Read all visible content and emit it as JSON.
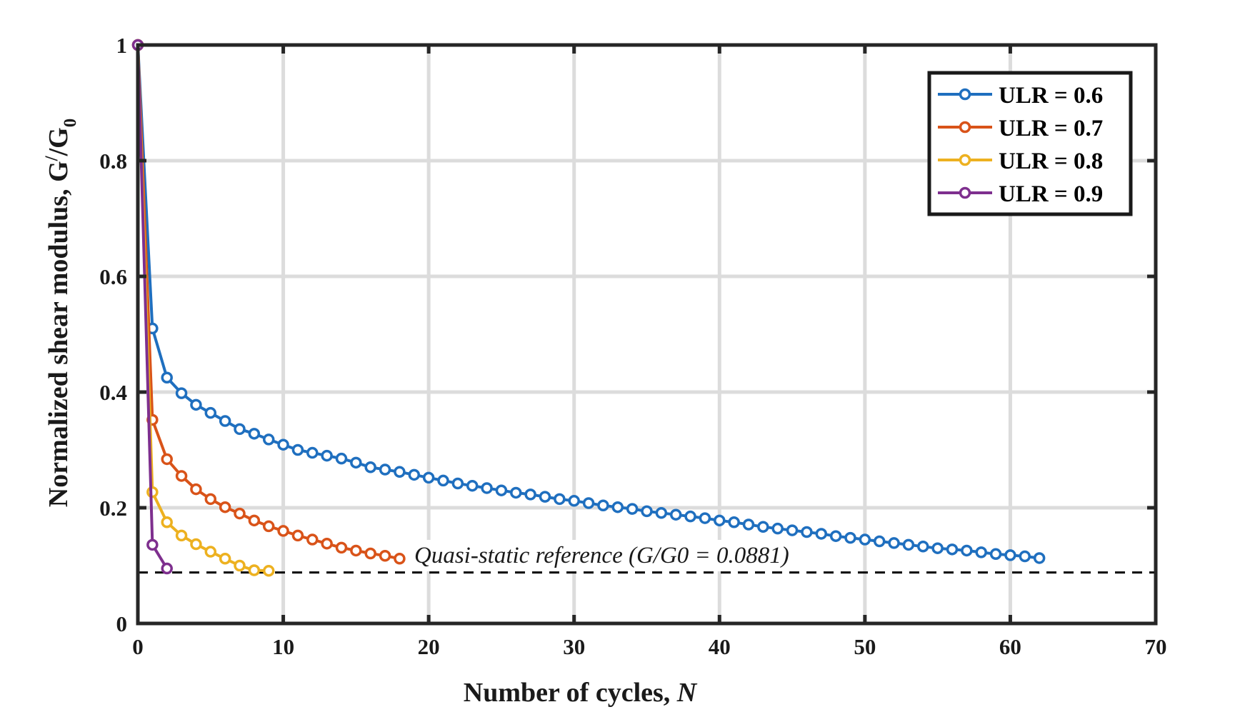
{
  "chart_data": {
    "type": "line",
    "title": "",
    "xlabel": "Number of cycles, ",
    "xlabel_italic": "N",
    "ylabel": "Normalized shear modulus, G",
    "ylabel_sup": "/",
    "ylabel_mid": "/G",
    "ylabel_sub": "0",
    "xlim": [
      0,
      70
    ],
    "ylim": [
      0,
      1
    ],
    "xticks": [
      0,
      10,
      20,
      30,
      40,
      50,
      60,
      70
    ],
    "xtick_labels": [
      "0",
      "10",
      "20",
      "30",
      "40",
      "50",
      "60",
      "70"
    ],
    "yticks": [
      0,
      0.2,
      0.4,
      0.6,
      0.8,
      1
    ],
    "ytick_labels": [
      "0",
      "0.2",
      "0.4",
      "0.6",
      "0.8",
      "1"
    ],
    "grid": true,
    "legend_position": "top-right",
    "series": [
      {
        "name": "ULR = 0.6",
        "color": "#1f6fbf",
        "x": [
          0,
          1,
          2,
          3,
          4,
          5,
          6,
          7,
          8,
          9,
          10,
          11,
          12,
          13,
          14,
          15,
          16,
          17,
          18,
          19,
          20,
          21,
          22,
          23,
          24,
          25,
          26,
          27,
          28,
          29,
          30,
          31,
          32,
          33,
          34,
          35,
          36,
          37,
          38,
          39,
          40,
          41,
          42,
          43,
          44,
          45,
          46,
          47,
          48,
          49,
          50,
          51,
          52,
          53,
          54,
          55,
          56,
          57,
          58,
          59,
          60,
          61,
          62
        ],
        "y": [
          1,
          0.51,
          0.425,
          0.398,
          0.378,
          0.364,
          0.35,
          0.336,
          0.328,
          0.318,
          0.309,
          0.3,
          0.295,
          0.29,
          0.285,
          0.278,
          0.27,
          0.266,
          0.262,
          0.257,
          0.252,
          0.247,
          0.242,
          0.238,
          0.234,
          0.23,
          0.226,
          0.223,
          0.219,
          0.215,
          0.212,
          0.208,
          0.204,
          0.201,
          0.198,
          0.194,
          0.191,
          0.188,
          0.185,
          0.182,
          0.178,
          0.175,
          0.171,
          0.167,
          0.164,
          0.161,
          0.158,
          0.155,
          0.151,
          0.148,
          0.145,
          0.142,
          0.139,
          0.136,
          0.133,
          0.13,
          0.128,
          0.126,
          0.123,
          0.12,
          0.118,
          0.116,
          0.113
        ]
      },
      {
        "name": "ULR = 0.7",
        "color": "#d95319",
        "x": [
          0,
          1,
          2,
          3,
          4,
          5,
          6,
          7,
          8,
          9,
          10,
          11,
          12,
          13,
          14,
          15,
          16,
          17,
          18
        ],
        "y": [
          1,
          0.352,
          0.284,
          0.255,
          0.232,
          0.215,
          0.201,
          0.19,
          0.178,
          0.168,
          0.16,
          0.152,
          0.145,
          0.138,
          0.131,
          0.126,
          0.121,
          0.117,
          0.112
        ]
      },
      {
        "name": "ULR = 0.8",
        "color": "#edb120",
        "x": [
          0,
          1,
          2,
          3,
          4,
          5,
          6,
          7,
          8,
          9
        ],
        "y": [
          1,
          0.227,
          0.175,
          0.152,
          0.137,
          0.124,
          0.112,
          0.1,
          0.092,
          0.091
        ]
      },
      {
        "name": "ULR = 0.9",
        "color": "#7e2f8e",
        "x": [
          0,
          1,
          2
        ],
        "y": [
          1,
          0.136,
          0.095
        ]
      }
    ],
    "reference_line": {
      "y": 0.0881,
      "label": "Quasi-static reference (G/G0 = 0.0881)",
      "color": "#000000",
      "style": "dashed"
    }
  }
}
